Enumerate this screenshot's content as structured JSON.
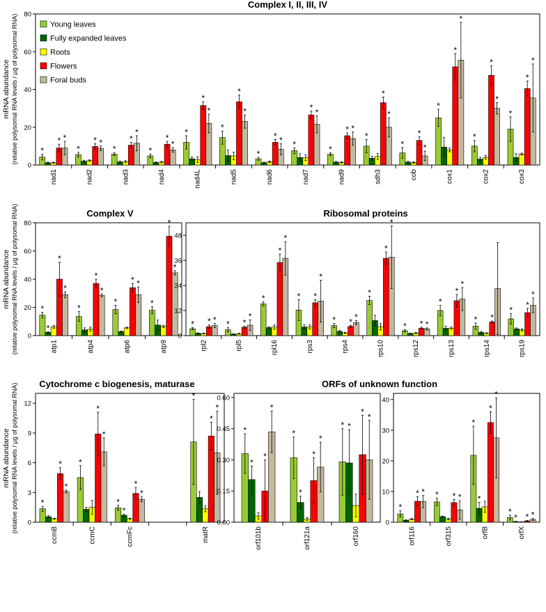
{
  "colors": {
    "young": "#99cc33",
    "expanded": "#006600",
    "roots": "#ffff00",
    "flowers": "#ff0000",
    "buds": "#c4b8a0"
  },
  "axis_label_main": "mRNA abundance",
  "axis_label_sub": "(relative polysomal RNA levels / µg of polysomal RNA)",
  "legend": [
    "Young leaves",
    "Fully expanded leaves",
    "Roots",
    "Flowers",
    "Foral buds"
  ],
  "chart_data": [
    {
      "id": "complex-1234",
      "type": "bar",
      "title": "Complex I, II, III, IV",
      "ylim": [
        0,
        80
      ],
      "yticks": [
        "0",
        "20",
        "40",
        "60",
        "80"
      ],
      "categories": [
        "nad1",
        "nad2",
        "nad3",
        "nad4",
        "nad4L",
        "nad5",
        "nad6",
        "nad7",
        "nad9",
        "sdh3",
        "cob",
        "cox1",
        "cox2",
        "cox3"
      ],
      "series": [
        {
          "name": "Young leaves",
          "values": [
            4.2,
            5.5,
            5.8,
            4.8,
            12,
            14.5,
            3.3,
            7.6,
            5.7,
            10,
            6.4,
            25,
            10,
            19
          ],
          "err": [
            1.5,
            1.2,
            0.8,
            1,
            3.5,
            3.5,
            0.8,
            1.5,
            0.8,
            3.5,
            2.8,
            4.5,
            3,
            6.5
          ],
          "star": [
            1,
            1,
            1,
            1,
            1,
            1,
            1,
            1,
            1,
            1,
            1,
            1,
            1,
            1
          ]
        },
        {
          "name": "Fully expanded leaves",
          "values": [
            1.2,
            2,
            1.6,
            1.3,
            3.3,
            5,
            1.2,
            4,
            1.5,
            3.6,
            1.5,
            9.5,
            3.1,
            4
          ],
          "err": [
            0.3,
            0.5,
            0.5,
            0.4,
            1,
            3,
            0.3,
            2,
            0.4,
            1,
            0.5,
            5,
            1,
            2
          ],
          "star": [
            0,
            0,
            0,
            0,
            0,
            0,
            0,
            0,
            0,
            0,
            0,
            0,
            0,
            0
          ]
        },
        {
          "name": "Roots",
          "values": [
            1.2,
            2.3,
            1.8,
            1.5,
            2.8,
            4.8,
            1.7,
            3.8,
            1.4,
            4.5,
            1.3,
            8,
            4,
            5.8
          ],
          "err": [
            0.3,
            0.4,
            0.5,
            0.4,
            1.5,
            2,
            0.4,
            1.5,
            0.3,
            1.5,
            0.4,
            1,
            1,
            0.5
          ],
          "star": [
            0,
            0,
            0,
            0,
            0,
            0,
            0,
            0,
            0,
            0,
            0,
            0,
            0,
            0
          ]
        },
        {
          "name": "Flowers",
          "values": [
            9,
            9.8,
            10.5,
            11,
            31.5,
            33.5,
            12,
            26.5,
            15.5,
            33,
            13,
            52,
            47.5,
            40.5
          ],
          "err": [
            2,
            1.5,
            1.5,
            1.5,
            2,
            3.5,
            1.5,
            2,
            1.5,
            3,
            2,
            7,
            5,
            4
          ],
          "star": [
            1,
            1,
            1,
            1,
            1,
            1,
            1,
            1,
            1,
            1,
            1,
            1,
            1,
            1
          ]
        },
        {
          "name": "Foral buds",
          "values": [
            9,
            8.8,
            11.5,
            8,
            22,
            23,
            8.3,
            21.5,
            14,
            20,
            4.8,
            55.5,
            30,
            35.5
          ],
          "err": [
            3.5,
            1.2,
            4,
            1.2,
            5,
            3.5,
            3,
            4.5,
            3.5,
            5,
            2.5,
            20,
            3,
            18
          ],
          "star": [
            1,
            1,
            1,
            1,
            1,
            1,
            1,
            1,
            1,
            1,
            1,
            1,
            1,
            1
          ]
        }
      ]
    },
    {
      "id": "complex-5",
      "type": "bar",
      "title": "Complex V",
      "ylim": [
        0,
        80
      ],
      "yticks": [
        "0",
        "20",
        "40",
        "60",
        "80"
      ],
      "categories": [
        "atp1",
        "atp4",
        "atp6",
        "atp9"
      ],
      "series": [
        {
          "name": "Young leaves",
          "values": [
            14.5,
            13.5,
            18.5,
            18
          ],
          "err": [
            2,
            3.5,
            3,
            2.5
          ],
          "star": [
            1,
            1,
            1,
            1
          ]
        },
        {
          "name": "Fully expanded leaves",
          "values": [
            2.3,
            4,
            2.8,
            7.5
          ],
          "err": [
            0.5,
            1.5,
            0.5,
            3.5
          ],
          "star": [
            1,
            0,
            0,
            0
          ]
        },
        {
          "name": "Roots",
          "values": [
            6.2,
            4.5,
            5.5,
            6.5
          ],
          "err": [
            1,
            1.5,
            0.5,
            0.8
          ],
          "star": [
            0,
            0,
            0,
            0
          ]
        },
        {
          "name": "Flowers",
          "values": [
            40,
            37,
            34,
            70.5
          ],
          "err": [
            12,
            3,
            3,
            7
          ],
          "star": [
            1,
            1,
            1,
            1
          ]
        },
        {
          "name": "Foral buds",
          "values": [
            29,
            28.5,
            29,
            44.5
          ],
          "err": [
            2,
            1,
            5.5,
            1.5
          ],
          "star": [
            1,
            1,
            1,
            1
          ]
        }
      ]
    },
    {
      "id": "ribosomal",
      "type": "bar",
      "title": "Ribosomal proteins",
      "ylim": [
        0,
        54
      ],
      "yticks": [
        "0",
        "12",
        "24",
        "36",
        "48"
      ],
      "categories": [
        "rpl2",
        "rpl5",
        "rpl16",
        "rps3",
        "rps4",
        "rps10",
        "rps12",
        "rps13",
        "rps14",
        "rps19"
      ],
      "series": [
        {
          "name": "Young leaves",
          "values": [
            3.3,
            2.8,
            15.2,
            12.2,
            4.8,
            16.8,
            2.3,
            12,
            4.5,
            8
          ],
          "err": [
            0.5,
            1,
            1,
            5,
            1,
            2,
            0.5,
            2.5,
            1.5,
            2.5
          ],
          "star": [
            1,
            1,
            1,
            1,
            1,
            1,
            1,
            1,
            1,
            1
          ]
        },
        {
          "name": "Fully expanded leaves",
          "values": [
            1.1,
            0.7,
            3.8,
            4.1,
            2,
            7.2,
            1,
            3.5,
            1.5,
            3.2
          ],
          "err": [
            0.2,
            0.2,
            0.5,
            1,
            0.5,
            2.5,
            0.2,
            1,
            0.5,
            0.5
          ],
          "star": [
            0,
            0,
            0,
            0,
            0,
            0,
            0,
            0,
            0,
            0
          ]
        },
        {
          "name": "Roots",
          "values": [
            1,
            0.9,
            4.1,
            4.1,
            1.3,
            4.2,
            1.2,
            3.6,
            1.1,
            2.7
          ],
          "err": [
            0.2,
            0.2,
            1,
            1,
            0.3,
            1.5,
            0.3,
            0.5,
            0.2,
            0.5
          ],
          "star": [
            0,
            0,
            0,
            0,
            0,
            0,
            0,
            0,
            0,
            0
          ]
        },
        {
          "name": "Flowers",
          "values": [
            4.3,
            4,
            35,
            15.7,
            4.4,
            37,
            3.5,
            16.7,
            6.5,
            11
          ],
          "err": [
            0.8,
            0.5,
            4,
            1.5,
            0.5,
            3,
            0.5,
            3,
            0.5,
            2
          ],
          "star": [
            1,
            1,
            1,
            1,
            1,
            1,
            1,
            1,
            1,
            1
          ]
        },
        {
          "name": "Foral buds",
          "values": [
            4.8,
            5,
            37,
            16.5,
            6.2,
            37.5,
            3.2,
            17.5,
            22.5,
            14.5
          ],
          "err": [
            1,
            2.5,
            8,
            10,
            1,
            15,
            0.5,
            5.5,
            22,
            3.5
          ],
          "star": [
            1,
            1,
            1,
            1,
            1,
            1,
            1,
            1,
            0,
            1
          ]
        }
      ]
    },
    {
      "id": "cytochrome",
      "type": "bar",
      "title": "Cytochrome c biogenesis, maturase",
      "ylim": [
        0,
        13
      ],
      "yticks": [
        "0",
        "3",
        "6",
        "9",
        "12"
      ],
      "categories": [
        "ccmB",
        "ccmC",
        "ccmFc",
        "",
        "matR"
      ],
      "series": [
        {
          "name": "Young leaves",
          "values": [
            1.35,
            4.5,
            1.45,
            null,
            8.1
          ],
          "err": [
            0.25,
            1.2,
            0.25,
            null,
            4.3
          ],
          "star": [
            1,
            1,
            1,
            0,
            1
          ]
        },
        {
          "name": "Fully expanded leaves",
          "values": [
            0.55,
            1.3,
            0.7,
            null,
            2.5
          ],
          "err": [
            0.1,
            0.2,
            0.1,
            null,
            0.6
          ],
          "star": [
            0,
            0,
            1,
            0,
            0
          ]
        },
        {
          "name": "Roots",
          "values": [
            0.35,
            1.5,
            0.35,
            null,
            1.35
          ],
          "err": [
            0.05,
            0.7,
            0.05,
            null,
            0.3
          ],
          "star": [
            0,
            0,
            0,
            0,
            0
          ]
        },
        {
          "name": "Flowers",
          "values": [
            4.9,
            8.9,
            2.9,
            null,
            8.7
          ],
          "err": [
            0.6,
            2.2,
            0.6,
            null,
            1.4
          ],
          "star": [
            1,
            1,
            1,
            0,
            1
          ]
        },
        {
          "name": "Foral buds",
          "values": [
            3.1,
            7.1,
            2.3,
            null,
            7
          ],
          "err": [
            0.15,
            1.4,
            0.25,
            null,
            4.2
          ],
          "star": [
            1,
            1,
            1,
            0,
            1
          ]
        }
      ]
    },
    {
      "id": "orfs-small",
      "type": "bar",
      "title": "ORFs of unknown function",
      "ylim": [
        0,
        0.62
      ],
      "yticks": [
        "0.00",
        "0.15",
        "0.30",
        "0.45",
        "0.60"
      ],
      "categories": [
        "orf101b",
        "orf121a",
        "orf160"
      ],
      "series": [
        {
          "name": "Young leaves",
          "values": [
            0.33,
            0.31,
            0.29
          ],
          "err": [
            0.095,
            0.1,
            0.16
          ],
          "star": [
            1,
            1,
            1
          ]
        },
        {
          "name": "Fully expanded leaves",
          "values": [
            0.205,
            0.095,
            0.285
          ],
          "err": [
            0.065,
            0.03,
            0.16
          ],
          "star": [
            1,
            1,
            1
          ]
        },
        {
          "name": "Roots",
          "values": [
            0.03,
            0.015,
            0.08
          ],
          "err": [
            0.015,
            0.007,
            0.055
          ],
          "star": [
            0,
            0,
            0
          ]
        },
        {
          "name": "Flowers",
          "values": [
            0.15,
            0.2,
            0.325
          ],
          "err": [
            0.15,
            0.11,
            0.19
          ],
          "star": [
            1,
            1,
            1
          ]
        },
        {
          "name": "Foral buds",
          "values": [
            0.435,
            0.265,
            0.3
          ],
          "err": [
            0.1,
            0.12,
            0.19
          ],
          "star": [
            1,
            1,
            1
          ]
        }
      ]
    },
    {
      "id": "orfs-large",
      "type": "bar",
      "title": "",
      "ylim": [
        0,
        42
      ],
      "yticks": [
        "0",
        "10",
        "20",
        "30",
        "40"
      ],
      "categories": [
        "orf116",
        "orf315",
        "orfB",
        "orfX"
      ],
      "series": [
        {
          "name": "Young leaves",
          "values": [
            2.7,
            6.6,
            21.8,
            1.5
          ],
          "err": [
            1,
            1.2,
            9.5,
            0.8
          ],
          "star": [
            1,
            1,
            1,
            1
          ]
        },
        {
          "name": "Fully expanded leaves",
          "values": [
            0.6,
            1.8,
            4.5,
            0.2
          ],
          "err": [
            0.2,
            0.2,
            2,
            0.1
          ],
          "star": [
            0,
            0,
            1,
            1
          ]
        },
        {
          "name": "Roots",
          "values": [
            1,
            1,
            5,
            0.1
          ],
          "err": [
            0.2,
            0.3,
            1.8,
            0.05
          ],
          "star": [
            0,
            0,
            0,
            0
          ]
        },
        {
          "name": "Flowers",
          "values": [
            6.8,
            6.4,
            32.5,
            0.4
          ],
          "err": [
            1.5,
            1,
            3.5,
            0.2
          ],
          "star": [
            1,
            1,
            1,
            1
          ]
        },
        {
          "name": "Foral buds",
          "values": [
            6.7,
            4,
            27.5,
            0.9
          ],
          "err": [
            2,
            3,
            13,
            0.3
          ],
          "star": [
            1,
            1,
            1,
            1
          ]
        }
      ]
    }
  ]
}
